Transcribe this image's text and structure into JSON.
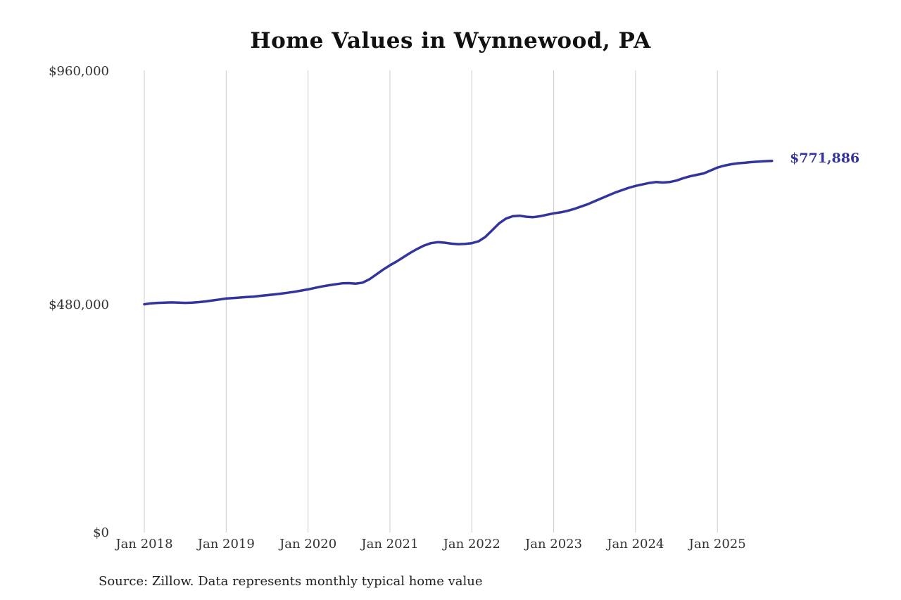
{
  "chart": {
    "title": "Home Values in Wynnewood, PA",
    "source": "Source: Zillow. Data represents monthly typical home value",
    "latest_value_label": "$771,886",
    "colors": {
      "line": "#34349E",
      "grid": "#cccccc",
      "text": "#333333"
    }
  },
  "chart_data": {
    "type": "line",
    "title": "Home Values in Wynnewood, PA",
    "series_name": "Monthly typical home value",
    "x_start": "Jan 2018",
    "x_end": "Sep 2025",
    "x_tick_labels": [
      "Jan 2018",
      "Jan 2019",
      "Jan 2020",
      "Jan 2021",
      "Jan 2022",
      "Jan 2023",
      "Jan 2024",
      "Jan 2025"
    ],
    "y_tick_labels": [
      "$960,000",
      "$480,000",
      "$0"
    ],
    "ylim": [
      0,
      960000
    ],
    "grid": "vertical-only",
    "legend": "none",
    "end_value": 771886,
    "values": [
      474000,
      476000,
      477000,
      477500,
      478000,
      477500,
      477000,
      477500,
      478500,
      480000,
      482000,
      484000,
      486000,
      487000,
      488000,
      489000,
      490000,
      491500,
      493000,
      494500,
      496000,
      498000,
      500000,
      502500,
      505000,
      508000,
      511000,
      513500,
      515500,
      517500,
      518000,
      517000,
      519000,
      526000,
      536000,
      546000,
      555000,
      563000,
      572000,
      581000,
      589000,
      596000,
      601000,
      603000,
      602000,
      600000,
      599000,
      599500,
      601000,
      605000,
      614000,
      628000,
      642000,
      652000,
      657000,
      658000,
      656000,
      655000,
      657000,
      660000,
      663000,
      665000,
      668000,
      672000,
      677000,
      682000,
      688000,
      694000,
      700000,
      706000,
      711000,
      716000,
      720000,
      723000,
      726000,
      728000,
      727000,
      728000,
      731000,
      736000,
      740000,
      743000,
      746000,
      752000,
      758000,
      762000,
      765000,
      767000,
      768000,
      769500,
      770500,
      771300,
      771886
    ]
  }
}
